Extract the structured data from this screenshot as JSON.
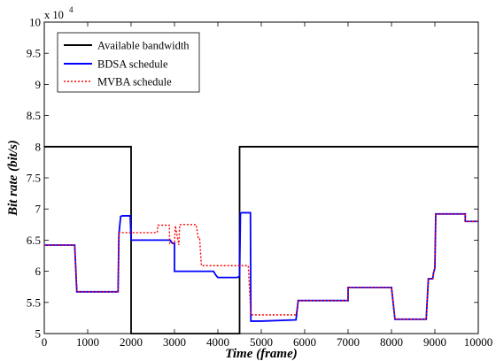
{
  "chart_data": {
    "type": "line",
    "xlabel": "Time (frame)",
    "ylabel": "Bit rate (bit/s)",
    "xlim": [
      0,
      10000
    ],
    "ylim": [
      50000,
      100000
    ],
    "x_ticks": [
      0,
      1000,
      2000,
      3000,
      4000,
      5000,
      6000,
      7000,
      8000,
      9000,
      10000
    ],
    "x_tick_labels": [
      "0",
      "1000",
      "2000",
      "3000",
      "4000",
      "5000",
      "6000",
      "7000",
      "8000",
      "9000",
      "10000"
    ],
    "y_ticks": [
      50000,
      55000,
      60000,
      65000,
      70000,
      75000,
      80000,
      85000,
      90000,
      95000,
      100000
    ],
    "y_tick_labels": [
      "5",
      "5.5",
      "6",
      "6.5",
      "7",
      "7.5",
      "8",
      "8.5",
      "9",
      "9.5",
      "10"
    ],
    "y_multiplier": {
      "base": "x 10",
      "exponent": "4"
    },
    "legend_position": "top-left",
    "series": [
      {
        "name": "Available bandwidth",
        "color": "#000000",
        "style": "solid",
        "x": [
          0,
          2000,
          2000,
          4500,
          4500,
          10000
        ],
        "y": [
          80000,
          80000,
          50000,
          50000,
          80000,
          80000
        ]
      },
      {
        "name": "BDSA schedule",
        "color": "#0000ff",
        "style": "solid",
        "x": [
          0,
          700,
          750,
          1700,
          1720,
          1760,
          1800,
          1980,
          2000,
          2900,
          2950,
          3000,
          3000,
          3900,
          3950,
          4000,
          4450,
          4500,
          4520,
          4550,
          4750,
          4760,
          5000,
          5800,
          5850,
          7000,
          7000,
          8000,
          8080,
          8800,
          8850,
          8950,
          8970,
          9000,
          9020,
          9700,
          9700,
          10000
        ],
        "y": [
          64200,
          64200,
          56700,
          56700,
          66000,
          68800,
          68900,
          68900,
          65000,
          65000,
          64500,
          64500,
          60000,
          60000,
          59400,
          59000,
          59000,
          59200,
          69300,
          69400,
          69400,
          52000,
          52000,
          52200,
          55300,
          55300,
          57400,
          57400,
          52300,
          52300,
          58800,
          58800,
          59800,
          60500,
          69200,
          69200,
          68000,
          68000
        ]
      },
      {
        "name": "MVBA schedule",
        "color": "#ff0000",
        "style": "dotted",
        "x": [
          0,
          700,
          750,
          1700,
          1720,
          2600,
          2620,
          2880,
          2890,
          3000,
          3020,
          3100,
          3120,
          3500,
          3550,
          3580,
          3620,
          4700,
          4760,
          5000,
          5800,
          5850,
          7000,
          7000,
          8000,
          8080,
          8800,
          8850,
          8950,
          8970,
          9000,
          9020,
          9700,
          9700,
          10000
        ],
        "y": [
          64200,
          64200,
          56700,
          56700,
          66200,
          66200,
          67400,
          67400,
          64500,
          64500,
          67300,
          64200,
          67500,
          67500,
          65200,
          65200,
          60900,
          60900,
          53000,
          53000,
          53000,
          55300,
          55300,
          57400,
          57400,
          52300,
          52300,
          58800,
          58800,
          59800,
          60500,
          69200,
          69200,
          68000,
          68000
        ]
      }
    ]
  }
}
